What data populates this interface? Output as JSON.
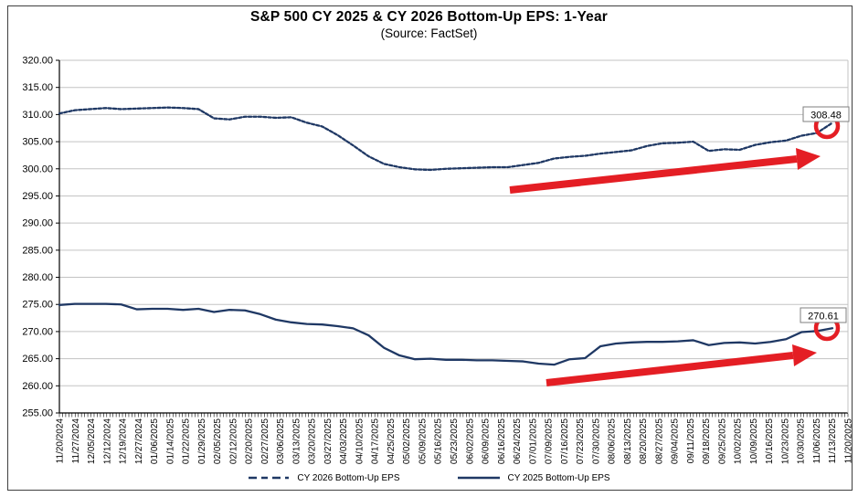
{
  "title": "S&P 500 CY 2025 & CY 2026 Bottom-Up EPS: 1-Year",
  "subtitle": "(Source: FactSet)",
  "colors": {
    "series": "#1f3864",
    "annotation_red": "#e41e24",
    "gridline": "#c3c3c3",
    "axis": "#000000",
    "end_label_border": "#7f7f7f"
  },
  "end_labels": {
    "cy2026": "308.48",
    "cy2025": "270.61"
  },
  "legend": {
    "items": [
      {
        "label": "CY 2026 Bottom-Up EPS",
        "style": "dashed"
      },
      {
        "label": "CY 2025 Bottom-Up EPS",
        "style": "solid"
      }
    ]
  },
  "chart_data": {
    "type": "line",
    "title": "S&P 500 CY 2025 & CY 2026 Bottom-Up EPS: 1-Year",
    "subtitle": "(Source: FactSet)",
    "ylim": [
      255,
      320
    ],
    "ytick_step": 5,
    "ytick_decimals": 2,
    "grid": true,
    "legend_position": "bottom",
    "categories": [
      "11/20/2024",
      "11/27/2024",
      "12/05/2024",
      "12/12/2024",
      "12/19/2024",
      "12/27/2024",
      "01/06/2025",
      "01/14/2025",
      "01/22/2025",
      "01/29/2025",
      "02/05/2025",
      "02/12/2025",
      "02/20/2025",
      "02/27/2025",
      "03/06/2025",
      "03/13/2025",
      "03/20/2025",
      "03/27/2025",
      "04/03/2025",
      "04/10/2025",
      "04/17/2025",
      "04/25/2025",
      "05/02/2025",
      "05/09/2025",
      "05/16/2025",
      "05/23/2025",
      "06/02/2025",
      "06/09/2025",
      "06/16/2025",
      "06/24/2025",
      "07/01/2025",
      "07/09/2025",
      "07/16/2025",
      "07/23/2025",
      "07/30/2025",
      "08/06/2025",
      "08/13/2025",
      "08/20/2025",
      "08/27/2025",
      "09/04/2025",
      "09/11/2025",
      "09/18/2025",
      "09/25/2025",
      "10/02/2025",
      "10/09/2025",
      "10/16/2025",
      "10/23/2025",
      "10/30/2025",
      "11/06/2025",
      "11/13/2025",
      "11/20/2025"
    ],
    "series": [
      {
        "name": "CY 2026 Bottom-Up EPS",
        "style": "dashed",
        "end_value": 308.48,
        "values": [
          310.2,
          310.8,
          311.0,
          311.2,
          311.0,
          311.1,
          311.2,
          311.3,
          311.2,
          311.0,
          309.3,
          309.1,
          309.6,
          309.6,
          309.4,
          309.5,
          308.5,
          307.8,
          306.2,
          304.3,
          302.3,
          300.9,
          300.3,
          299.9,
          299.8,
          300.0,
          300.1,
          300.2,
          300.3,
          300.3,
          300.7,
          301.1,
          301.9,
          302.2,
          302.4,
          302.8,
          303.1,
          303.4,
          304.2,
          304.7,
          304.8,
          305.0,
          303.3,
          303.6,
          303.5,
          304.4,
          304.9,
          305.2,
          306.1,
          306.6,
          308.48
        ]
      },
      {
        "name": "CY 2025 Bottom-Up EPS",
        "style": "solid",
        "end_value": 270.61,
        "values": [
          274.9,
          275.1,
          275.1,
          275.1,
          275.0,
          274.1,
          274.2,
          274.2,
          274.0,
          274.2,
          273.6,
          274.0,
          273.9,
          273.2,
          272.2,
          271.7,
          271.4,
          271.3,
          271.0,
          270.6,
          269.3,
          267.0,
          265.6,
          264.9,
          265.0,
          264.8,
          264.8,
          264.7,
          264.7,
          264.6,
          264.5,
          264.1,
          263.9,
          264.9,
          265.1,
          267.3,
          267.8,
          268.0,
          268.1,
          268.1,
          268.2,
          268.4,
          267.5,
          267.9,
          268.0,
          267.8,
          268.1,
          268.6,
          269.9,
          270.1,
          270.61
        ]
      }
    ],
    "annotations": [
      {
        "type": "arrow",
        "color": "red",
        "note": "upward revision trend of CY 2026 EPS",
        "series": "CY 2026 Bottom-Up EPS"
      },
      {
        "type": "arrow",
        "color": "red",
        "note": "upward revision trend of CY 2025 EPS",
        "series": "CY 2025 Bottom-Up EPS"
      },
      {
        "type": "circled-endpoint",
        "color": "red",
        "label": "308.48",
        "series": "CY 2026 Bottom-Up EPS"
      },
      {
        "type": "circled-endpoint",
        "color": "red",
        "label": "270.61",
        "series": "CY 2025 Bottom-Up EPS"
      }
    ]
  }
}
